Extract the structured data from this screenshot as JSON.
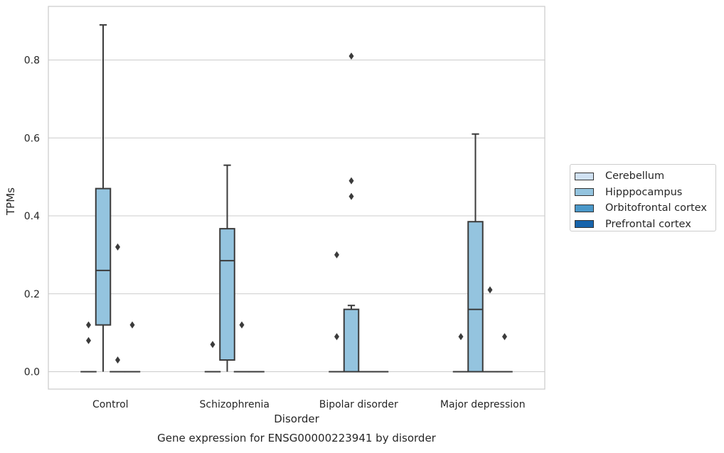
{
  "chart_data": {
    "type": "box",
    "title": "Gene expression for ENSG00000223941 by disorder",
    "xlabel": "Disorder",
    "ylabel": "TPMs",
    "categories": [
      "Control",
      "Schizophrenia",
      "Bipolar disorder",
      "Major depression"
    ],
    "ylim": [
      -0.044,
      0.935
    ],
    "yticks": [
      "0.0",
      "0.2",
      "0.4",
      "0.6",
      "0.8"
    ],
    "grid": true,
    "legend_position": "right",
    "series": [
      {
        "name": "Cerebellum",
        "color": "#d0e1f2",
        "boxes": [
          {
            "q1": 0,
            "median": 0,
            "q3": 0,
            "whisker_low": 0,
            "whisker_high": 0,
            "outliers": [
              0.08,
              0.12
            ]
          },
          {
            "q1": 0,
            "median": 0,
            "q3": 0,
            "whisker_low": 0,
            "whisker_high": 0,
            "outliers": [
              0.07
            ]
          },
          {
            "q1": 0,
            "median": 0,
            "q3": 0,
            "whisker_low": 0,
            "whisker_high": 0,
            "outliers": [
              0.09,
              0.3
            ]
          },
          {
            "q1": 0,
            "median": 0,
            "q3": 0,
            "whisker_low": 0,
            "whisker_high": 0,
            "outliers": [
              0.09
            ]
          }
        ]
      },
      {
        "name": "Hipppocampus",
        "color": "#94c4df",
        "boxes": [
          {
            "q1": 0.12,
            "median": 0.26,
            "q3": 0.47,
            "whisker_low": 0,
            "whisker_high": 0.89,
            "outliers": []
          },
          {
            "q1": 0.03,
            "median": 0.285,
            "q3": 0.367,
            "whisker_low": 0,
            "whisker_high": 0.53,
            "outliers": []
          },
          {
            "q1": 0,
            "median": 0,
            "q3": 0.16,
            "whisker_low": 0,
            "whisker_high": 0.17,
            "outliers": [
              0.45,
              0.49,
              0.81
            ]
          },
          {
            "q1": 0,
            "median": 0.16,
            "q3": 0.385,
            "whisker_low": 0,
            "whisker_high": 0.61,
            "outliers": []
          }
        ]
      },
      {
        "name": "Orbitofrontal cortex",
        "color": "#4a98c9",
        "boxes": [
          {
            "q1": 0,
            "median": 0,
            "q3": 0,
            "whisker_low": 0,
            "whisker_high": 0,
            "outliers": [
              0.03,
              0.32
            ]
          },
          {
            "q1": 0,
            "median": 0,
            "q3": 0,
            "whisker_low": 0,
            "whisker_high": 0,
            "outliers": [
              0.12
            ]
          },
          {
            "q1": 0,
            "median": 0,
            "q3": 0,
            "whisker_low": 0,
            "whisker_high": 0,
            "outliers": []
          },
          {
            "q1": 0,
            "median": 0,
            "q3": 0,
            "whisker_low": 0,
            "whisker_high": 0,
            "outliers": [
              0.21
            ]
          }
        ]
      },
      {
        "name": "Prefrontal cortex",
        "color": "#1764ab",
        "boxes": [
          {
            "q1": 0,
            "median": 0,
            "q3": 0,
            "whisker_low": 0,
            "whisker_high": 0,
            "outliers": [
              0.12
            ]
          },
          {
            "q1": 0,
            "median": 0,
            "q3": 0,
            "whisker_low": 0,
            "whisker_high": 0,
            "outliers": []
          },
          {
            "q1": 0,
            "median": 0,
            "q3": 0,
            "whisker_low": 0,
            "whisker_high": 0,
            "outliers": []
          },
          {
            "q1": 0,
            "median": 0,
            "q3": 0,
            "whisker_low": 0,
            "whisker_high": 0,
            "outliers": [
              0.09
            ]
          }
        ]
      }
    ]
  }
}
